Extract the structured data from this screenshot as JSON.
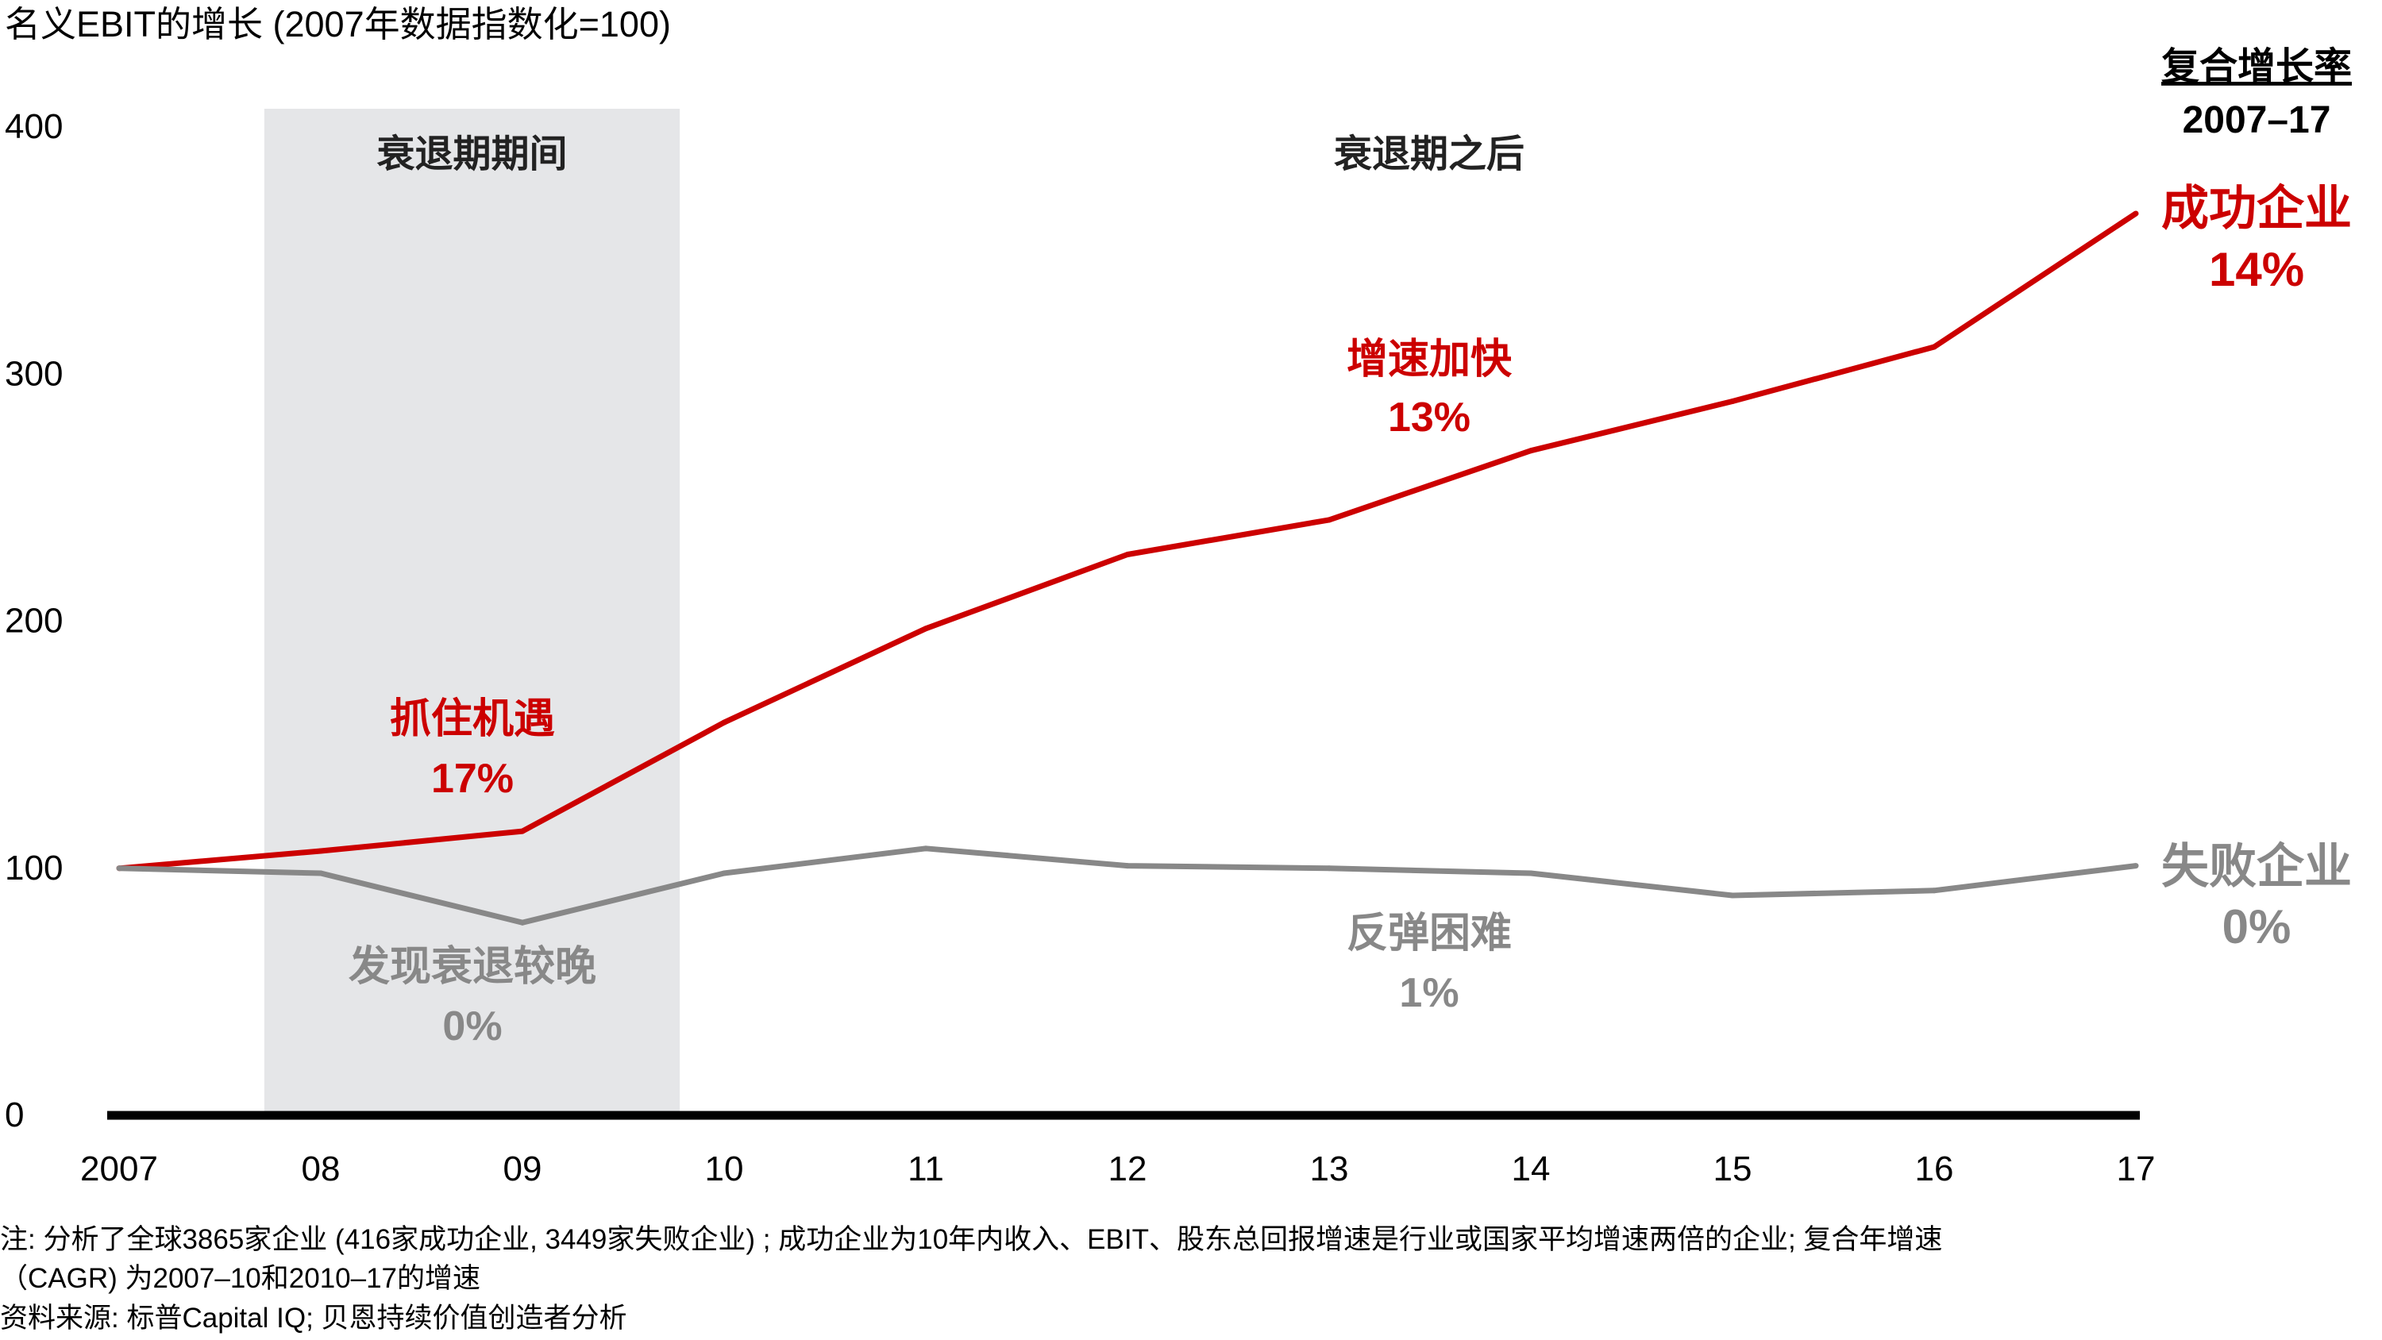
{
  "chart_data": {
    "type": "line",
    "title": "名义EBIT的增长 (2007年数据指数化=100)",
    "categories": [
      "2007",
      "08",
      "09",
      "10",
      "11",
      "12",
      "13",
      "14",
      "15",
      "16",
      "17"
    ],
    "ylim": [
      0,
      400
    ],
    "yticks": [
      0,
      100,
      200,
      300,
      400
    ],
    "grid": false,
    "series": [
      {
        "name": "成功企业",
        "color": "#cc0000",
        "values": [
          100,
          107,
          115,
          159,
          197,
          227,
          241,
          269,
          289,
          311,
          365
        ]
      },
      {
        "name": "失败企业",
        "color": "#888888",
        "values": [
          100,
          98,
          78,
          98,
          108,
          101,
          100,
          98,
          89,
          91,
          101
        ]
      }
    ],
    "shaded_region": {
      "from": 0.72,
      "to": 2.78,
      "label": "衰退期期间",
      "color": "#e5e6e8"
    },
    "region_label_after": "衰退期之后",
    "cagr_header": [
      "复合增长率",
      "2007–17"
    ],
    "series_end_labels": [
      {
        "series": 0,
        "value": "14%"
      },
      {
        "series": 1,
        "value": "0%"
      }
    ],
    "annotations": [
      {
        "text": "抓住机遇",
        "value": "17%",
        "color": "#cc0000"
      },
      {
        "text": "增速加快",
        "value": "13%",
        "color": "#cc0000"
      },
      {
        "text": "发现衰退较晚",
        "value": "0%",
        "color": "#888888"
      },
      {
        "text": "反弹困难",
        "value": "1%",
        "color": "#888888"
      }
    ]
  },
  "footnote": {
    "line1": "注: 分析了全球3865家企业 (416家成功企业, 3449家失败企业) ; 成功企业为10年内收入、EBIT、股东总回报增速是行业或国家平均增速两倍的企业; 复合年增速",
    "line2": "（CAGR) 为2007–10和2010–17的增速",
    "source": "资料来源: 标普Capital IQ; 贝恩持续价值创造者分析"
  }
}
